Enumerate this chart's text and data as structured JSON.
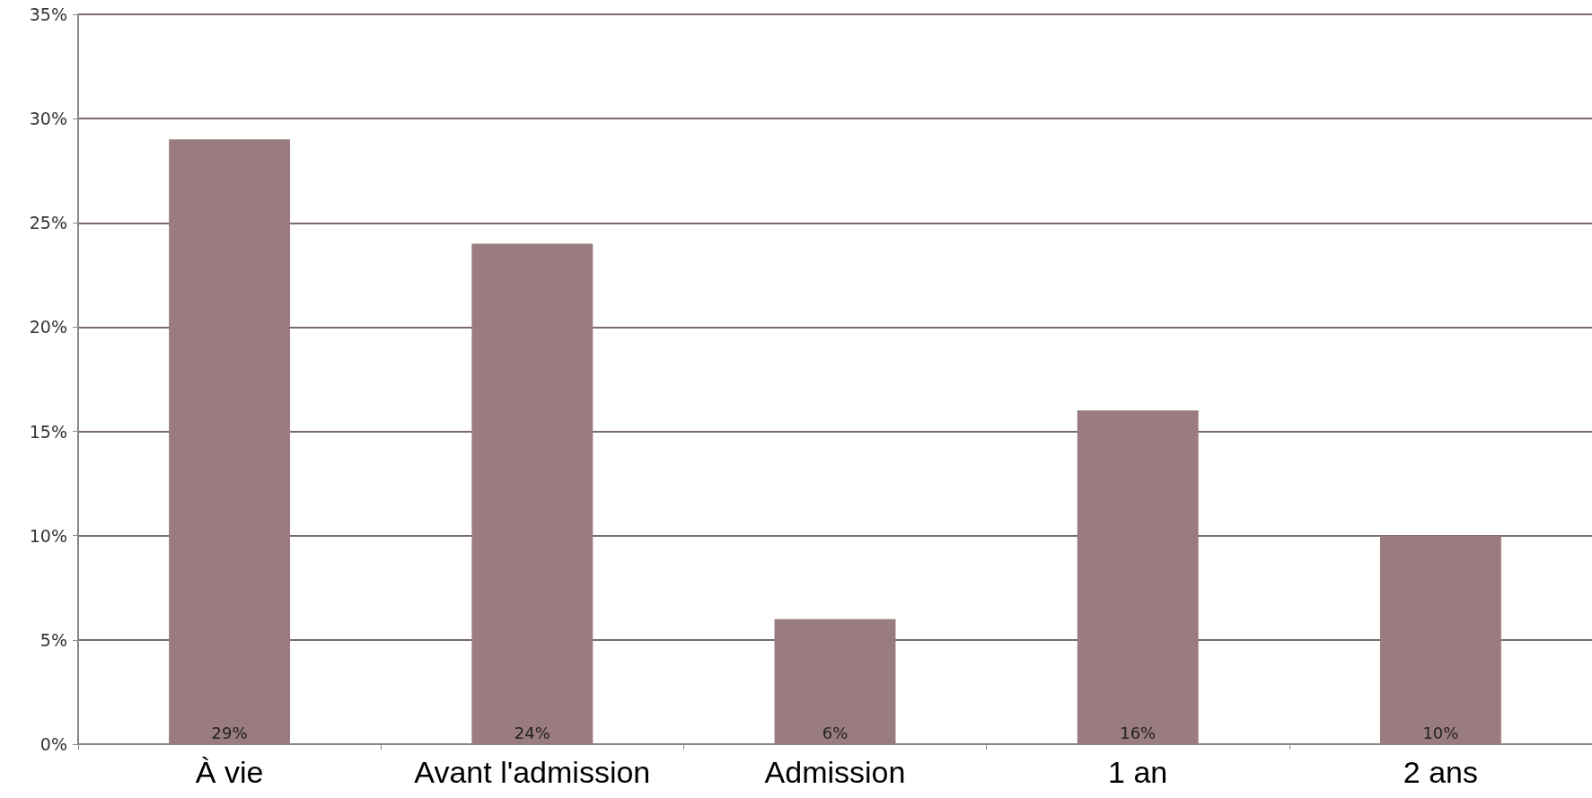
{
  "chart_data": {
    "type": "bar",
    "categories": [
      "À vie",
      "Avant l'admission",
      "Admission",
      "1 an",
      "2 ans"
    ],
    "values": [
      29,
      24,
      6,
      16,
      10
    ],
    "color": "#9a7b80",
    "value_labels": [
      "29%",
      "24%",
      "6%",
      "16%",
      "10%"
    ],
    "ylim": [
      0,
      35
    ],
    "yticks": [
      {
        "value": 0,
        "label": "0%"
      },
      {
        "value": 5,
        "label": "5%"
      },
      {
        "value": 10,
        "label": "10%"
      },
      {
        "value": 15,
        "label": "15%"
      },
      {
        "value": 20,
        "label": "20%"
      },
      {
        "value": 25,
        "label": "25%"
      },
      {
        "value": 30,
        "label": "30%"
      },
      {
        "value": 35,
        "label": "35%"
      }
    ],
    "grid": "y"
  }
}
